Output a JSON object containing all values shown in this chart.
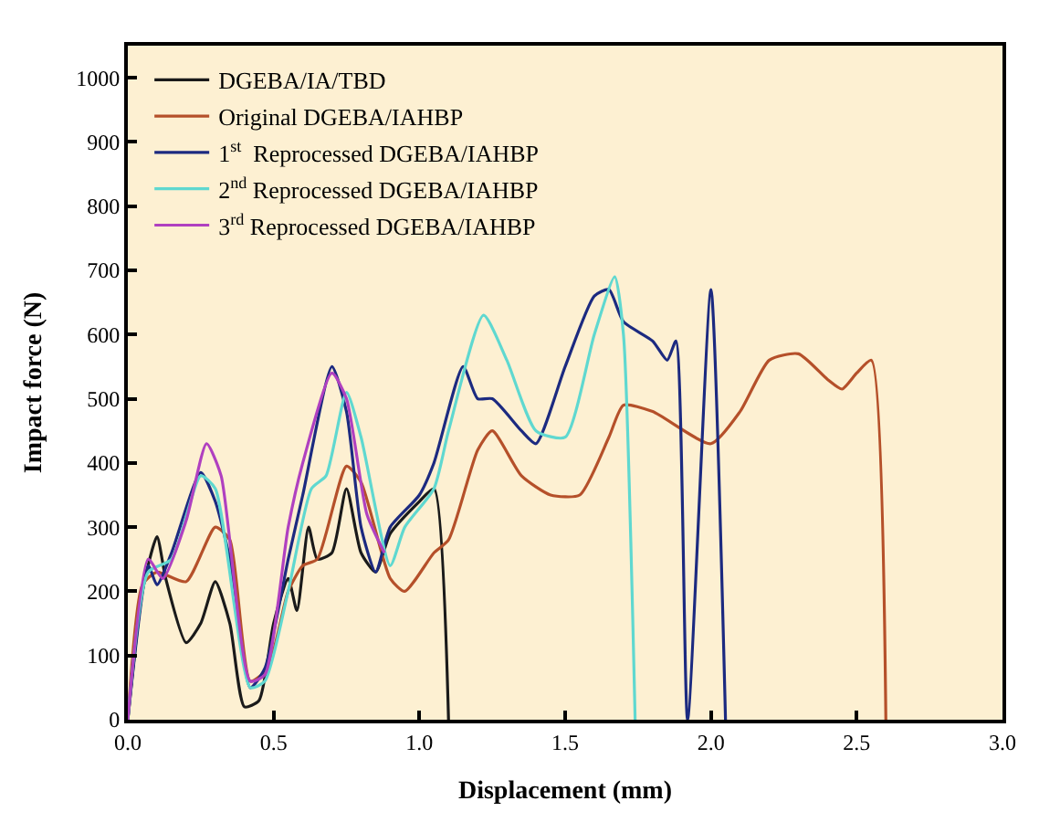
{
  "chart_data": {
    "type": "line",
    "xlabel": "Displacement (mm)",
    "ylabel": "Impact force (N)",
    "xlim": [
      0,
      3
    ],
    "ylim": [
      0,
      1050
    ],
    "xticks": [
      {
        "value": 0,
        "label": "0.0"
      },
      0.5,
      {
        "value": 1,
        "label": "1.0"
      },
      1.5,
      {
        "value": 2,
        "label": "2.0"
      },
      2.5,
      {
        "value": 3,
        "label": "3.0"
      }
    ],
    "yticks": [
      0,
      100,
      200,
      300,
      400,
      500,
      600,
      700,
      800,
      900,
      1000
    ],
    "grid": false,
    "legend": "top left",
    "marker": "none",
    "line_style": "solid",
    "series": [
      {
        "name": "DGEBA/IA/TBD",
        "color": "#1a1a1a",
        "x": [
          0,
          0.05,
          0.1,
          0.13,
          0.2,
          0.25,
          0.3,
          0.35,
          0.4,
          0.45,
          0.5,
          0.55,
          0.58,
          0.62,
          0.65,
          0.7,
          0.75,
          0.8,
          0.85,
          0.9,
          1.0,
          1.05,
          1.1
        ],
        "values": [
          0,
          200,
          285,
          220,
          120,
          150,
          215,
          150,
          20,
          30,
          150,
          220,
          170,
          300,
          250,
          260,
          360,
          260,
          230,
          290,
          340,
          360,
          0
        ]
      },
      {
        "name": "Original DGEBA/IAHBP",
        "color": "#b5502a",
        "x": [
          0,
          0.05,
          0.1,
          0.2,
          0.3,
          0.35,
          0.42,
          0.48,
          0.55,
          0.6,
          0.65,
          0.75,
          0.8,
          0.9,
          0.95,
          1.05,
          1.1,
          1.2,
          1.25,
          1.35,
          1.45,
          1.55,
          1.65,
          1.7,
          1.8,
          2.0,
          2.1,
          2.2,
          2.3,
          2.4,
          2.45,
          2.5,
          2.55,
          2.6
        ],
        "values": [
          0,
          210,
          230,
          215,
          300,
          280,
          60,
          80,
          200,
          240,
          250,
          395,
          370,
          220,
          200,
          260,
          280,
          420,
          450,
          380,
          350,
          350,
          440,
          490,
          480,
          430,
          480,
          560,
          570,
          530,
          515,
          540,
          560,
          0
        ]
      },
      {
        "name": "1$^{st}$  Reprocessed DGEBA/IAHBP",
        "color": "#1c2a80",
        "x": [
          0,
          0.07,
          0.1,
          0.15,
          0.25,
          0.3,
          0.35,
          0.42,
          0.47,
          0.55,
          0.6,
          0.7,
          0.75,
          0.8,
          0.85,
          0.9,
          1.0,
          1.05,
          1.15,
          1.2,
          1.25,
          1.35,
          1.4,
          1.5,
          1.6,
          1.65,
          1.7,
          1.8,
          1.85,
          1.88,
          1.92,
          2.0,
          2.05
        ],
        "values": [
          0,
          240,
          210,
          260,
          385,
          340,
          250,
          50,
          80,
          250,
          350,
          550,
          480,
          300,
          230,
          300,
          350,
          400,
          550,
          500,
          500,
          450,
          430,
          550,
          660,
          670,
          620,
          590,
          560,
          590,
          0,
          670,
          0
        ]
      },
      {
        "name": "2$^{nd}$ Reprocessed DGEBA/IAHBP",
        "color": "#5fd8d0",
        "x": [
          0,
          0.07,
          0.15,
          0.25,
          0.3,
          0.42,
          0.47,
          0.55,
          0.63,
          0.68,
          0.75,
          0.8,
          0.9,
          0.95,
          1.05,
          1.1,
          1.22,
          1.3,
          1.4,
          1.5,
          1.6,
          1.67,
          1.7,
          1.74
        ],
        "values": [
          0,
          230,
          250,
          380,
          360,
          50,
          60,
          200,
          360,
          380,
          510,
          440,
          240,
          300,
          360,
          450,
          630,
          560,
          450,
          440,
          600,
          690,
          600,
          0
        ]
      },
      {
        "name": "3$^{rd}$ Reprocessed DGEBA/IAHBP",
        "color": "#b040c0",
        "x": [
          0,
          0.07,
          0.12,
          0.2,
          0.27,
          0.32,
          0.42,
          0.47,
          0.55,
          0.6,
          0.7,
          0.75,
          0.82,
          0.88
        ],
        "values": [
          0,
          250,
          220,
          310,
          430,
          380,
          60,
          70,
          300,
          400,
          540,
          500,
          320,
          260
        ]
      }
    ]
  }
}
